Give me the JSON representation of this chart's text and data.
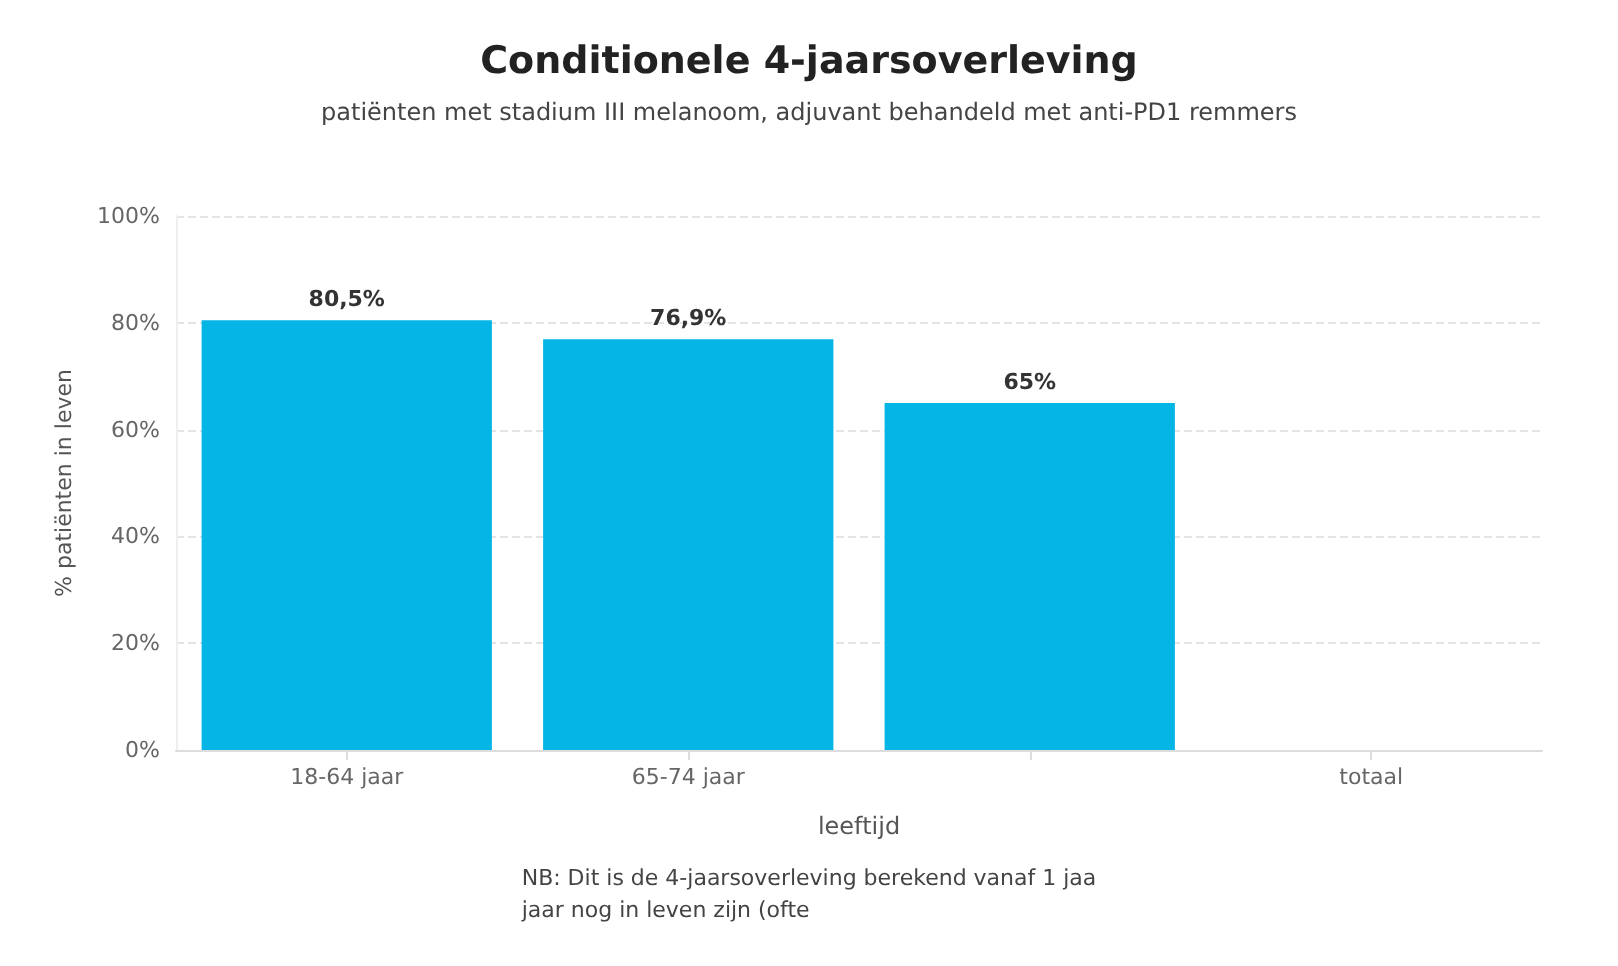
{
  "chart_data": {
    "type": "bar",
    "title": "Conditionele 4-jaarsoverleving",
    "subtitle": "patiënten met stadium III melanoom, adjuvant behandeld met anti-PD1 remmers",
    "xlabel": "leeftijd",
    "ylabel": "% patiënten in leven",
    "categories": [
      "18-64 jaar",
      "65-74 jaar",
      null,
      "totaal"
    ],
    "values": [
      80.5,
      76.9,
      65,
      null
    ],
    "colors": [
      "#05b5e6",
      "#05b5e6",
      "#05b5e6",
      "#01586f"
    ],
    "value_labels": [
      "80,5%",
      "76,9%",
      "65%",
      null
    ],
    "ylim": [
      0,
      100
    ],
    "yticks": [
      {
        "value": 0,
        "label": "0%"
      },
      {
        "value": 20,
        "label": "20%"
      },
      {
        "value": 40,
        "label": "40%"
      },
      {
        "value": 60,
        "label": "60%"
      },
      {
        "value": 80,
        "label": "80%"
      },
      {
        "value": 100,
        "label": "100%"
      }
    ],
    "grid": "y",
    "annotations": [
      "NB: Dit is de 4-jaarsoverleving berekend vanaf 1 jaa",
      "jaar nog in leven zijn (ofte"
    ]
  }
}
